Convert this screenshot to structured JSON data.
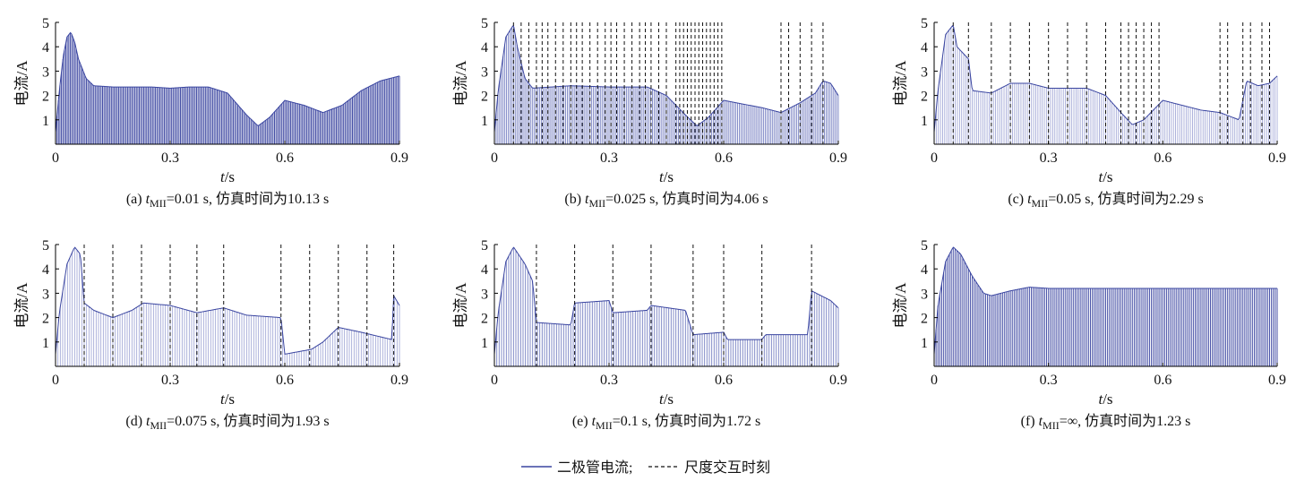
{
  "colors": {
    "current": "#3a45a0",
    "current_light": "#7b82c4",
    "dashed": "#111111",
    "axis": "#000000"
  },
  "legend": {
    "current_label": "二极管电流;",
    "switch_label": "尺度交互时刻"
  },
  "chart_data": [
    {
      "id": "a",
      "type": "line",
      "caption_prefix": "(a) ",
      "caption_var": "t",
      "caption_sub": "MII",
      "caption_rest": "=0.01 s, 仿真时间为10.13 s",
      "xlabel_var": "t",
      "xlabel_unit": "/s",
      "ylabel": "电流/A",
      "xlim": [
        0,
        0.9
      ],
      "ylim": [
        0,
        5
      ],
      "xticks": [
        0,
        0.3,
        0.6,
        0.9
      ],
      "xtick_labels": [
        "0",
        "0.3",
        "0.6",
        "0.9"
      ],
      "yticks": [
        1,
        2,
        3,
        4,
        5
      ],
      "ytick_labels": [
        "1",
        "2",
        "3",
        "4",
        "5"
      ],
      "ripple_hz": 260,
      "shade": "dark",
      "envelope": [
        [
          0,
          0.5
        ],
        [
          0.01,
          2.2
        ],
        [
          0.02,
          3.6
        ],
        [
          0.03,
          4.4
        ],
        [
          0.04,
          4.6
        ],
        [
          0.05,
          4.2
        ],
        [
          0.06,
          3.5
        ],
        [
          0.08,
          2.7
        ],
        [
          0.1,
          2.4
        ],
        [
          0.15,
          2.35
        ],
        [
          0.2,
          2.35
        ],
        [
          0.25,
          2.35
        ],
        [
          0.3,
          2.3
        ],
        [
          0.35,
          2.35
        ],
        [
          0.4,
          2.35
        ],
        [
          0.45,
          2.1
        ],
        [
          0.5,
          1.2
        ],
        [
          0.53,
          0.75
        ],
        [
          0.56,
          1.1
        ],
        [
          0.6,
          1.8
        ],
        [
          0.65,
          1.6
        ],
        [
          0.7,
          1.3
        ],
        [
          0.75,
          1.6
        ],
        [
          0.8,
          2.2
        ],
        [
          0.85,
          2.6
        ],
        [
          0.9,
          2.8
        ]
      ],
      "switch_times": []
    },
    {
      "id": "b",
      "type": "line",
      "caption_prefix": "(b) ",
      "caption_var": "t",
      "caption_sub": "MII",
      "caption_rest": "=0.025 s, 仿真时间为4.06 s",
      "xlabel_var": "t",
      "xlabel_unit": "/s",
      "ylabel": "电流/A",
      "xlim": [
        0,
        0.9
      ],
      "ylim": [
        0,
        5
      ],
      "xticks": [
        0,
        0.3,
        0.6,
        0.9
      ],
      "xtick_labels": [
        "0",
        "0.3",
        "0.6",
        "0.9"
      ],
      "yticks": [
        1,
        2,
        3,
        4,
        5
      ],
      "ytick_labels": [
        "1",
        "2",
        "3",
        "4",
        "5"
      ],
      "ripple_hz": 220,
      "shade": "mid",
      "envelope": [
        [
          0,
          0.5
        ],
        [
          0.01,
          2.2
        ],
        [
          0.03,
          4.4
        ],
        [
          0.05,
          4.9
        ],
        [
          0.06,
          4.0
        ],
        [
          0.08,
          2.7
        ],
        [
          0.1,
          2.3
        ],
        [
          0.15,
          2.35
        ],
        [
          0.2,
          2.4
        ],
        [
          0.3,
          2.35
        ],
        [
          0.4,
          2.35
        ],
        [
          0.45,
          2.0
        ],
        [
          0.5,
          1.2
        ],
        [
          0.53,
          0.75
        ],
        [
          0.56,
          1.1
        ],
        [
          0.6,
          1.8
        ],
        [
          0.7,
          1.5
        ],
        [
          0.75,
          1.3
        ],
        [
          0.8,
          1.7
        ],
        [
          0.84,
          2.1
        ],
        [
          0.86,
          2.6
        ],
        [
          0.88,
          2.5
        ],
        [
          0.9,
          2.0
        ]
      ],
      "switch_times": [
        0.05,
        0.07,
        0.09,
        0.11,
        0.125,
        0.14,
        0.16,
        0.18,
        0.2,
        0.215,
        0.23,
        0.25,
        0.27,
        0.29,
        0.305,
        0.32,
        0.34,
        0.36,
        0.38,
        0.395,
        0.41,
        0.43,
        0.45,
        0.475,
        0.485,
        0.495,
        0.505,
        0.515,
        0.525,
        0.535,
        0.545,
        0.555,
        0.565,
        0.575,
        0.585,
        0.595,
        0.75,
        0.77,
        0.8,
        0.83,
        0.86
      ]
    },
    {
      "id": "c",
      "type": "line",
      "caption_prefix": "(c) ",
      "caption_var": "t",
      "caption_sub": "MII",
      "caption_rest": "=0.05 s, 仿真时间为2.29 s",
      "xlabel_var": "t",
      "xlabel_unit": "/s",
      "ylabel": "电流/A",
      "xlim": [
        0,
        0.9
      ],
      "ylim": [
        0,
        5
      ],
      "xticks": [
        0,
        0.3,
        0.6,
        0.9
      ],
      "xtick_labels": [
        "0",
        "0.3",
        "0.6",
        "0.9"
      ],
      "yticks": [
        1,
        2,
        3,
        4,
        5
      ],
      "ytick_labels": [
        "1",
        "2",
        "3",
        "4",
        "5"
      ],
      "ripple_hz": 180,
      "shade": "light",
      "envelope": [
        [
          0,
          0.5
        ],
        [
          0.01,
          2.2
        ],
        [
          0.03,
          4.5
        ],
        [
          0.05,
          4.9
        ],
        [
          0.06,
          4.0
        ],
        [
          0.09,
          3.5
        ],
        [
          0.1,
          2.2
        ],
        [
          0.15,
          2.1
        ],
        [
          0.2,
          2.5
        ],
        [
          0.25,
          2.5
        ],
        [
          0.3,
          2.3
        ],
        [
          0.35,
          2.3
        ],
        [
          0.4,
          2.3
        ],
        [
          0.45,
          2.0
        ],
        [
          0.49,
          1.3
        ],
        [
          0.52,
          0.8
        ],
        [
          0.55,
          1.0
        ],
        [
          0.6,
          1.8
        ],
        [
          0.7,
          1.4
        ],
        [
          0.75,
          1.3
        ],
        [
          0.8,
          1.0
        ],
        [
          0.82,
          2.6
        ],
        [
          0.85,
          2.4
        ],
        [
          0.88,
          2.5
        ],
        [
          0.9,
          2.8
        ]
      ],
      "switch_times": [
        0.05,
        0.09,
        0.15,
        0.2,
        0.25,
        0.3,
        0.35,
        0.4,
        0.45,
        0.49,
        0.51,
        0.53,
        0.55,
        0.57,
        0.59,
        0.75,
        0.77,
        0.81,
        0.83,
        0.86,
        0.88
      ]
    },
    {
      "id": "d",
      "type": "line",
      "caption_prefix": "(d) ",
      "caption_var": "t",
      "caption_sub": "MII",
      "caption_rest": "=0.075 s, 仿真时间为1.93 s",
      "xlabel_var": "t",
      "xlabel_unit": "/s",
      "ylabel": "电流/A",
      "xlim": [
        0,
        0.9
      ],
      "ylim": [
        0,
        5
      ],
      "xticks": [
        0,
        0.3,
        0.6,
        0.9
      ],
      "xtick_labels": [
        "0",
        "0.3",
        "0.6",
        "0.9"
      ],
      "yticks": [
        1,
        2,
        3,
        4,
        5
      ],
      "ytick_labels": [
        "1",
        "2",
        "3",
        "4",
        "5"
      ],
      "ripple_hz": 160,
      "shade": "light",
      "envelope": [
        [
          0,
          0.5
        ],
        [
          0.01,
          2.2
        ],
        [
          0.03,
          4.2
        ],
        [
          0.05,
          4.9
        ],
        [
          0.065,
          4.6
        ],
        [
          0.075,
          2.6
        ],
        [
          0.1,
          2.3
        ],
        [
          0.15,
          2.0
        ],
        [
          0.2,
          2.3
        ],
        [
          0.23,
          2.6
        ],
        [
          0.3,
          2.5
        ],
        [
          0.37,
          2.2
        ],
        [
          0.44,
          2.4
        ],
        [
          0.5,
          2.1
        ],
        [
          0.59,
          2.0
        ],
        [
          0.6,
          0.5
        ],
        [
          0.67,
          0.7
        ],
        [
          0.7,
          1.0
        ],
        [
          0.74,
          1.6
        ],
        [
          0.8,
          1.4
        ],
        [
          0.88,
          1.1
        ],
        [
          0.885,
          2.9
        ],
        [
          0.9,
          2.5
        ]
      ],
      "switch_times": [
        0.075,
        0.15,
        0.225,
        0.3,
        0.37,
        0.44,
        0.59,
        0.665,
        0.74,
        0.815,
        0.885
      ]
    },
    {
      "id": "e",
      "type": "line",
      "caption_prefix": "(e) ",
      "caption_var": "t",
      "caption_sub": "MII",
      "caption_rest": "=0.1 s, 仿真时间为1.72 s",
      "xlabel_var": "t",
      "xlabel_unit": "/s",
      "ylabel": "电流/A",
      "xlim": [
        0,
        0.9
      ],
      "ylim": [
        0,
        5
      ],
      "xticks": [
        0,
        0.3,
        0.6,
        0.9
      ],
      "xtick_labels": [
        "0",
        "0.3",
        "0.6",
        "0.9"
      ],
      "yticks": [
        1,
        2,
        3,
        4,
        5
      ],
      "ytick_labels": [
        "1",
        "2",
        "3",
        "4",
        "5"
      ],
      "ripple_hz": 160,
      "shade": "mid",
      "envelope": [
        [
          0,
          0.5
        ],
        [
          0.01,
          2.2
        ],
        [
          0.03,
          4.3
        ],
        [
          0.05,
          4.9
        ],
        [
          0.08,
          4.2
        ],
        [
          0.1,
          3.5
        ],
        [
          0.11,
          1.8
        ],
        [
          0.2,
          1.7
        ],
        [
          0.21,
          2.6
        ],
        [
          0.3,
          2.7
        ],
        [
          0.31,
          2.2
        ],
        [
          0.4,
          2.3
        ],
        [
          0.41,
          2.5
        ],
        [
          0.5,
          2.3
        ],
        [
          0.52,
          1.3
        ],
        [
          0.6,
          1.4
        ],
        [
          0.61,
          1.1
        ],
        [
          0.7,
          1.1
        ],
        [
          0.71,
          1.3
        ],
        [
          0.82,
          1.3
        ],
        [
          0.83,
          3.1
        ],
        [
          0.88,
          2.7
        ],
        [
          0.9,
          2.4
        ]
      ],
      "switch_times": [
        0.11,
        0.21,
        0.31,
        0.41,
        0.52,
        0.6,
        0.7,
        0.83
      ]
    },
    {
      "id": "f",
      "type": "line",
      "caption_prefix": "(f) ",
      "caption_var": "t",
      "caption_sub": "MII",
      "caption_rest": "=∞, 仿真时间为1.23 s",
      "xlabel_var": "t",
      "xlabel_unit": "/s",
      "ylabel": "电流/A",
      "xlim": [
        0,
        0.9
      ],
      "ylim": [
        0,
        5
      ],
      "xticks": [
        0,
        0.3,
        0.6,
        0.9
      ],
      "xtick_labels": [
        "0",
        "0.3",
        "0.6",
        "0.9"
      ],
      "yticks": [
        1,
        2,
        3,
        4,
        5
      ],
      "ytick_labels": [
        "1",
        "2",
        "3",
        "4",
        "5"
      ],
      "ripple_hz": 200,
      "shade": "dark",
      "envelope": [
        [
          0,
          0.5
        ],
        [
          0.01,
          2.5
        ],
        [
          0.03,
          4.3
        ],
        [
          0.05,
          4.9
        ],
        [
          0.07,
          4.6
        ],
        [
          0.1,
          3.7
        ],
        [
          0.13,
          3.0
        ],
        [
          0.15,
          2.9
        ],
        [
          0.2,
          3.1
        ],
        [
          0.25,
          3.25
        ],
        [
          0.3,
          3.2
        ],
        [
          0.4,
          3.2
        ],
        [
          0.5,
          3.2
        ],
        [
          0.6,
          3.2
        ],
        [
          0.7,
          3.2
        ],
        [
          0.8,
          3.2
        ],
        [
          0.9,
          3.2
        ]
      ],
      "switch_times": []
    }
  ]
}
